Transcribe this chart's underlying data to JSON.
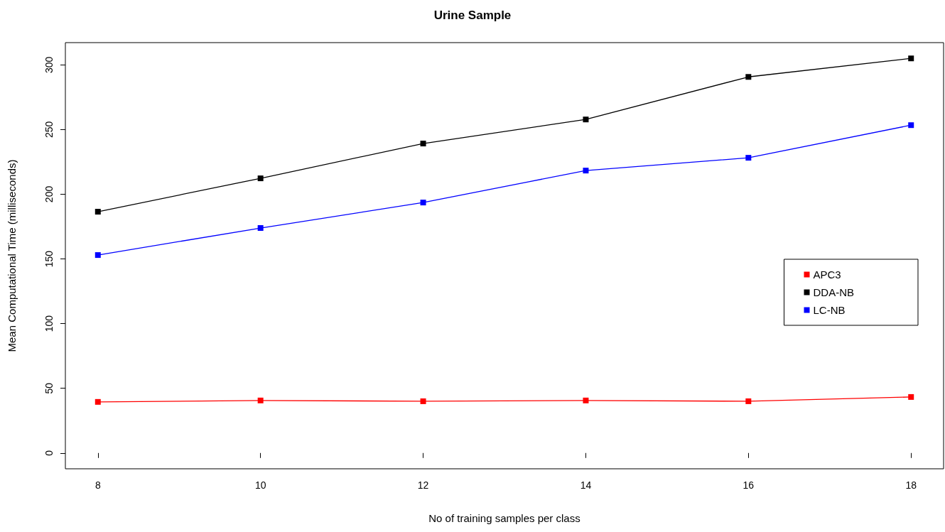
{
  "chart_data": {
    "type": "line",
    "title": "Urine Sample",
    "xlabel": "No of training samples per class",
    "ylabel": "Mean Computational Time (milliseconds)",
    "x": [
      8,
      10,
      12,
      14,
      16,
      18
    ],
    "series": [
      {
        "name": "APC3",
        "color": "#ff0000",
        "values": [
          39.5,
          40.6,
          40,
          40.6,
          40,
          43.3
        ]
      },
      {
        "name": "DDA-NB",
        "color": "#000000",
        "values": [
          186.5,
          212.3,
          239.2,
          257.8,
          290.7,
          305
        ]
      },
      {
        "name": "LC-NB",
        "color": "#0000ff",
        "values": [
          153,
          173.9,
          193.6,
          218.3,
          228.2,
          253.4
        ]
      }
    ],
    "xlim": [
      7.6,
      18.4
    ],
    "xticks": [
      8,
      10,
      12,
      14,
      16,
      18
    ],
    "ylim": [
      -12.2,
      317.2
    ],
    "yticks": [
      0,
      50,
      100,
      150,
      200,
      250,
      300
    ],
    "grid": false,
    "legend": "right",
    "marker": "square",
    "line_style": "solid"
  }
}
